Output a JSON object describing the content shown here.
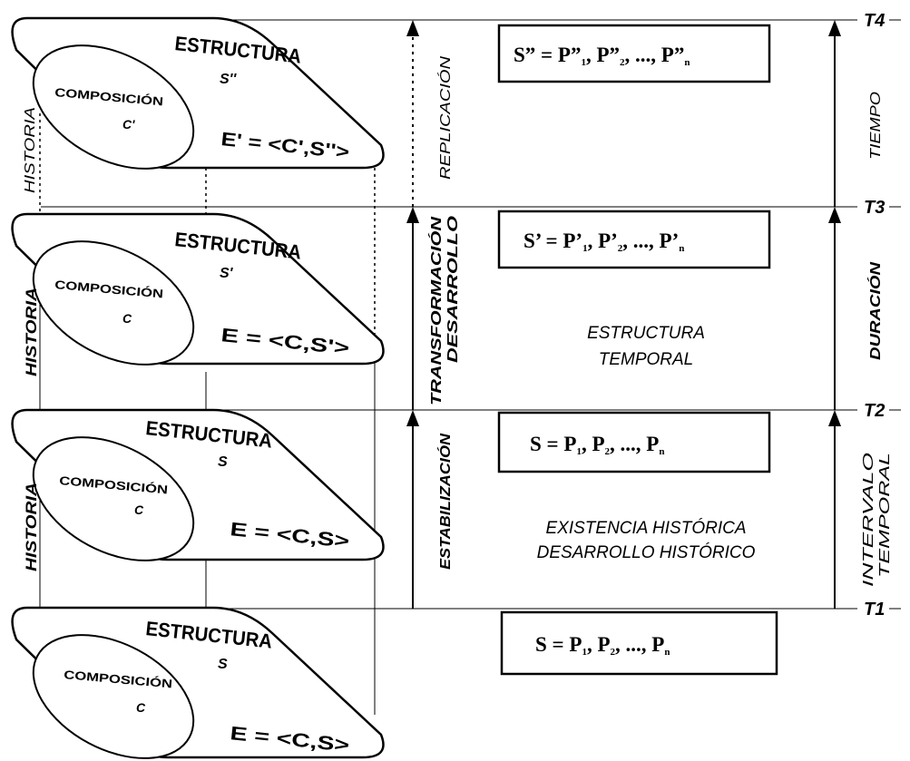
{
  "colors": {
    "ink": "#000000",
    "paper": "#ffffff"
  },
  "panels": [
    {
      "id": "panel-4",
      "composicion": "COMPOSICIÓN",
      "composicion_sym": "C'",
      "estructura": "ESTRUCTURA",
      "estructura_sym": "S''",
      "formula": "E' = <C',S''>",
      "historia": "HISTORIA",
      "historia_bold": false
    },
    {
      "id": "panel-3",
      "composicion": "COMPOSICIÓN",
      "composicion_sym": "C",
      "estructura": "ESTRUCTURA",
      "estructura_sym": "S'",
      "formula": "E = <C,S'>",
      "historia": "HISTORIA",
      "historia_bold": true
    },
    {
      "id": "panel-2",
      "composicion": "COMPOSICIÓN",
      "composicion_sym": "C",
      "estructura": "ESTRUCTURA",
      "estructura_sym": "S",
      "formula": "E = <C,S>",
      "historia": "HISTORIA",
      "historia_bold": true
    },
    {
      "id": "panel-1",
      "composicion": "COMPOSICIÓN",
      "composicion_sym": "C",
      "estructura": "ESTRUCTURA",
      "estructura_sym": "S",
      "formula": "E = <C,S>",
      "historia": "",
      "historia_bold": false
    }
  ],
  "process_labels": {
    "replicacion": "REPLICACIÓN",
    "transformacion": "TRANSFORMACIÓN",
    "desarrollo": "DESARROLLO",
    "estabilizacion": "ESTABILIZACIÓN"
  },
  "formula_boxes": {
    "s_double": {
      "base": "S” =  P”",
      "s1": "1",
      "mid": ", P”",
      "s2": "2",
      "tail": ", ..., P”",
      "sn": "n"
    },
    "s_prime": {
      "base": "S’ =  P’",
      "s1": "1",
      "mid": ", P’",
      "s2": "2",
      "tail": ", ..., P’",
      "sn": "n"
    },
    "s_plain": {
      "base": "S =  P",
      "s1": "1",
      "mid": ", P",
      "s2": "2",
      "tail": ", ..., P",
      "sn": "n"
    },
    "s_plain_bottom": {
      "base": "S =  P",
      "s1": "1",
      "mid": ", P",
      "s2": "2",
      "tail": ", ..., P",
      "sn": "n"
    }
  },
  "center_texts": {
    "estructura_temporal_1": "ESTRUCTURA",
    "estructura_temporal_2": "TEMPORAL",
    "existencia": "EXISTENCIA HISTÓRICA",
    "desarrollo": "DESARROLLO HISTÓRICO"
  },
  "time_labels": {
    "tiempo": "TIEMPO",
    "duracion": "DURACIÓN",
    "intervalo": "INTERVALO",
    "temporal": "TEMPORAL"
  },
  "time_marks": [
    "T4",
    "T3",
    "T2",
    "T1"
  ]
}
